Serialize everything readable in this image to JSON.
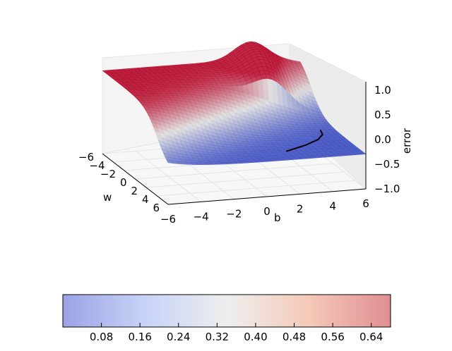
{
  "chart_data": {
    "type": "surface3d",
    "xlabel": "w",
    "ylabel": "b",
    "zlabel": "error",
    "xlim": [
      -6,
      6
    ],
    "ylim": [
      -6,
      6
    ],
    "zlim": [
      -1,
      1
    ],
    "x_ticks": [
      "−6",
      "−4",
      "−2",
      "0",
      "2",
      "4",
      "6"
    ],
    "y_ticks": [
      "−6",
      "−4",
      "−2",
      "0",
      "2",
      "4",
      "6"
    ],
    "z_ticks": [
      "−1.0",
      "−0.5",
      "0.0",
      "0.5",
      "1.0"
    ],
    "colormap": "coolwarm",
    "grid": true,
    "colorbar": {
      "placement": "bottom",
      "ticks": [
        "0.08",
        "0.16",
        "0.24",
        "0.32",
        "0.40",
        "0.48",
        "0.56",
        "0.64"
      ],
      "range": [
        0.0,
        0.68
      ]
    },
    "surface_error_range": [
      0.0,
      0.68
    ]
  },
  "colors": {
    "low": "#3b4cc0",
    "mid": "#dddddd",
    "high": "#b40426",
    "pane": "#f2f2f2",
    "grid": "#e6e6e6"
  }
}
